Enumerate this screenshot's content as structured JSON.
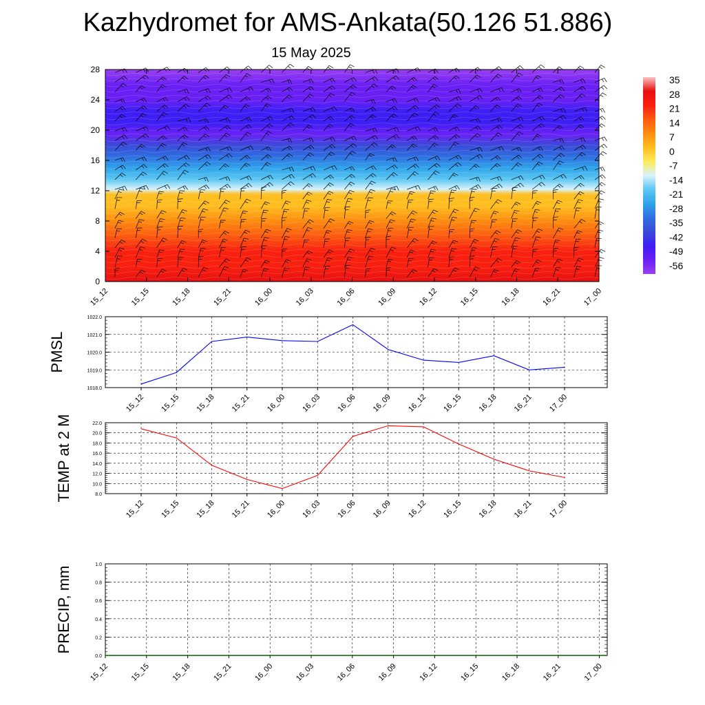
{
  "header": {
    "title": "Kazhydromet for AMS-Ankata(50.126 51.886)",
    "date": "15 May 2025"
  },
  "chart_data": [
    {
      "type": "heatmap",
      "title": "",
      "xlabel": "",
      "ylabel": "",
      "x_tick_labels": [
        "15_12",
        "15_15",
        "15_18",
        "15_21",
        "16_00",
        "16_03",
        "16_06",
        "16_09",
        "16_12",
        "16_15",
        "16_18",
        "16_21",
        "17_00"
      ],
      "y_ticks": [
        0,
        4,
        8,
        12,
        16,
        20,
        24,
        28
      ],
      "ylim": [
        0,
        28
      ],
      "colorbar": {
        "labels": [
          "35",
          "28",
          "21",
          "14",
          "7",
          "0",
          "-7",
          "-14",
          "-21",
          "-28",
          "-35",
          "-42",
          "-49",
          "-56"
        ],
        "colors": [
          "#fdc4c4",
          "#e61010",
          "#fa2010",
          "#fc5a10",
          "#fd8c10",
          "#ffbe20",
          "#fdec5a",
          "#d8f2fb",
          "#5cc7f2",
          "#30a3ea",
          "#2f6fe0",
          "#3a4ad8",
          "#3d1ff5",
          "#6a20f5",
          "#9a40f0"
        ]
      },
      "temperature_profile": [
        {
          "level": 0,
          "value": 30
        },
        {
          "level": 2,
          "value": 26
        },
        {
          "level": 4,
          "value": 20
        },
        {
          "level": 6,
          "value": 14
        },
        {
          "level": 8,
          "value": 9
        },
        {
          "level": 10,
          "value": 4
        },
        {
          "level": 11.5,
          "value": -2
        },
        {
          "level": 12.2,
          "value": -14
        },
        {
          "level": 13.5,
          "value": -22
        },
        {
          "level": 15,
          "value": -30
        },
        {
          "level": 16.5,
          "value": -38
        },
        {
          "level": 18,
          "value": -46
        },
        {
          "level": 19.5,
          "value": -56
        },
        {
          "level": 21,
          "value": -54
        },
        {
          "level": 22.5,
          "value": -50
        },
        {
          "level": 24,
          "value": -56
        },
        {
          "level": 26,
          "value": -62
        },
        {
          "level": 28,
          "value": -66
        }
      ],
      "wind_barbs": "shown"
    },
    {
      "type": "line",
      "ylabel": "PMSL",
      "ylim": [
        1018.0,
        1022.0
      ],
      "y_ticks": [
        "1018.0",
        "1019.0",
        "1020.0",
        "1021.0",
        "1022.0"
      ],
      "categories": [
        "15_12",
        "15_15",
        "15_18",
        "15_21",
        "16_00",
        "16_03",
        "16_06",
        "16_09",
        "16_12",
        "16_15",
        "16_18",
        "16_21",
        "17_00"
      ],
      "values": [
        1018.2,
        1018.85,
        1020.6,
        1020.85,
        1020.65,
        1020.6,
        1021.55,
        1020.15,
        1019.55,
        1019.42,
        1019.8,
        1019.0,
        1019.15
      ],
      "color": "#0000ff",
      "grid": true
    },
    {
      "type": "line",
      "ylabel": "TEMP at 2 M",
      "ylim": [
        8.0,
        22.0
      ],
      "y_ticks": [
        "8.0",
        "10.0",
        "12.0",
        "14.0",
        "16.0",
        "18.0",
        "20.0",
        "22.0"
      ],
      "categories": [
        "15_12",
        "15_15",
        "15_18",
        "15_21",
        "16_00",
        "16_03",
        "16_06",
        "16_09",
        "16_12",
        "16_15",
        "16_18",
        "16_21",
        "17_00"
      ],
      "values": [
        20.8,
        19.0,
        13.6,
        10.8,
        9.0,
        11.6,
        19.3,
        21.4,
        21.2,
        17.8,
        14.8,
        12.5,
        11.2
      ],
      "color": "#ff0000",
      "grid": true
    },
    {
      "type": "line",
      "ylabel": "PRECIP, mm",
      "ylim": [
        0.0,
        1.0
      ],
      "y_ticks": [
        "0.0",
        "0.2",
        "0.4",
        "0.6",
        "0.8",
        "1.0"
      ],
      "categories": [
        "15_12",
        "15_15",
        "15_18",
        "15_21",
        "16_00",
        "16_03",
        "16_06",
        "16_09",
        "16_12",
        "16_15",
        "16_18",
        "16_21",
        "17_00"
      ],
      "values": [
        0,
        0,
        0,
        0,
        0,
        0,
        0,
        0,
        0,
        0,
        0,
        0,
        0
      ],
      "color": "#006400",
      "grid": true
    }
  ]
}
